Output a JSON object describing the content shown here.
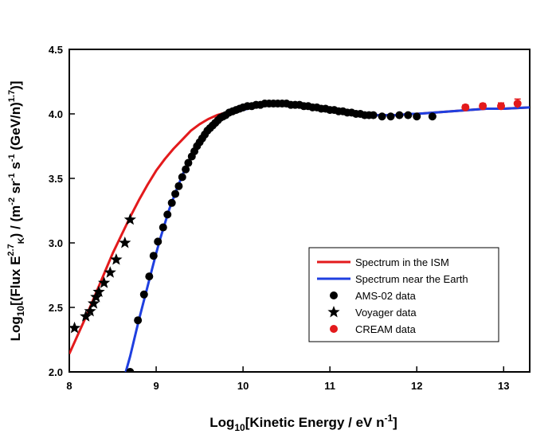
{
  "chart_data": {
    "type": "scatter",
    "xlim": [
      8,
      13.3
    ],
    "ylim": [
      2.0,
      4.5
    ],
    "x_ticks": [
      "8",
      "9",
      "10",
      "11",
      "12",
      "13"
    ],
    "x_tick_values": [
      8,
      9,
      10,
      11,
      12,
      13
    ],
    "y_ticks": [
      "2.0",
      "2.5",
      "3.0",
      "3.5",
      "4.0",
      "4.5"
    ],
    "y_tick_values": [
      2.0,
      2.5,
      3.0,
      3.5,
      4.0,
      4.5
    ],
    "xlabel": {
      "prefix": "Log",
      "sub": "10",
      "main": "[Kinetic Energy / eV n",
      "sup": "-1",
      "suffix": "]"
    },
    "ylabel": {
      "p1": "Log",
      "s1": "10",
      "p2": "[(Flux  E",
      "sup1": "2.7",
      "sub2": "K",
      "p3": ") / (m",
      "sup2": "-2",
      "p4": " sr",
      "sup3": "-1",
      "p5": " s",
      "sup4": "-1",
      "p6": " (GeV/n)",
      "sup5": "1.7",
      "p7": ")]"
    },
    "colors": {
      "ism": "#e31a1c",
      "earth": "#1f3fe0",
      "ams": "#000000",
      "voyager": "#000000",
      "cream": "#e31a1c"
    },
    "series": [
      {
        "name": "Spectrum in the ISM",
        "kind": "line",
        "color": "#e31a1c",
        "points": [
          [
            8.0,
            2.14
          ],
          [
            8.1,
            2.29
          ],
          [
            8.2,
            2.44
          ],
          [
            8.3,
            2.6
          ],
          [
            8.4,
            2.76
          ],
          [
            8.5,
            2.92
          ],
          [
            8.6,
            3.06
          ],
          [
            8.7,
            3.2
          ],
          [
            8.8,
            3.33
          ],
          [
            8.9,
            3.45
          ],
          [
            9.0,
            3.56
          ],
          [
            9.1,
            3.65
          ],
          [
            9.2,
            3.73
          ],
          [
            9.3,
            3.8
          ],
          [
            9.4,
            3.87
          ],
          [
            9.5,
            3.92
          ],
          [
            9.6,
            3.96
          ],
          [
            9.7,
            3.99
          ],
          [
            9.8,
            4.01
          ],
          [
            9.9,
            4.03
          ],
          [
            10.0,
            4.04
          ],
          [
            10.1,
            4.06
          ],
          [
            10.2,
            4.07
          ],
          [
            10.3,
            4.08
          ],
          [
            10.4,
            4.08
          ],
          [
            10.5,
            4.08
          ],
          [
            10.6,
            4.07
          ],
          [
            10.7,
            4.06
          ],
          [
            10.8,
            4.05
          ],
          [
            10.9,
            4.04
          ],
          [
            11.0,
            4.02
          ],
          [
            11.1,
            4.01
          ],
          [
            11.2,
            4.0
          ],
          [
            11.3,
            3.99
          ],
          [
            11.4,
            3.99
          ],
          [
            11.5,
            3.99
          ],
          [
            11.6,
            3.99
          ],
          [
            11.7,
            3.99
          ],
          [
            11.8,
            3.99
          ],
          [
            11.9,
            4.0
          ],
          [
            12.0,
            4.0
          ],
          [
            12.2,
            4.01
          ],
          [
            12.4,
            4.02
          ],
          [
            12.6,
            4.03
          ],
          [
            12.8,
            4.04
          ],
          [
            13.0,
            4.04
          ],
          [
            13.3,
            4.05
          ]
        ]
      },
      {
        "name": "Spectrum near the Earth",
        "kind": "line",
        "color": "#1f3fe0",
        "points": [
          [
            8.65,
            2.0
          ],
          [
            8.7,
            2.12
          ],
          [
            8.75,
            2.26
          ],
          [
            8.8,
            2.4
          ],
          [
            8.85,
            2.53
          ],
          [
            8.9,
            2.66
          ],
          [
            8.95,
            2.79
          ],
          [
            9.0,
            2.92
          ],
          [
            9.05,
            3.04
          ],
          [
            9.1,
            3.15
          ],
          [
            9.15,
            3.26
          ],
          [
            9.2,
            3.35
          ],
          [
            9.25,
            3.44
          ],
          [
            9.3,
            3.52
          ],
          [
            9.35,
            3.6
          ],
          [
            9.4,
            3.66
          ],
          [
            9.45,
            3.72
          ],
          [
            9.5,
            3.77
          ],
          [
            9.55,
            3.82
          ],
          [
            9.6,
            3.86
          ],
          [
            9.65,
            3.9
          ],
          [
            9.7,
            3.93
          ],
          [
            9.75,
            3.96
          ],
          [
            9.8,
            3.98
          ],
          [
            9.9,
            4.01
          ],
          [
            10.0,
            4.03
          ],
          [
            10.1,
            4.05
          ],
          [
            10.2,
            4.06
          ],
          [
            10.3,
            4.07
          ],
          [
            10.4,
            4.08
          ],
          [
            10.5,
            4.08
          ],
          [
            10.6,
            4.07
          ],
          [
            10.7,
            4.06
          ],
          [
            10.8,
            4.05
          ],
          [
            10.9,
            4.04
          ],
          [
            11.0,
            4.02
          ],
          [
            11.1,
            4.01
          ],
          [
            11.2,
            4.0
          ],
          [
            11.3,
            3.99
          ],
          [
            11.4,
            3.99
          ],
          [
            11.5,
            3.99
          ],
          [
            11.6,
            3.99
          ],
          [
            11.7,
            3.99
          ],
          [
            11.8,
            3.99
          ],
          [
            11.9,
            4.0
          ],
          [
            12.0,
            4.0
          ],
          [
            12.2,
            4.01
          ],
          [
            12.4,
            4.02
          ],
          [
            12.6,
            4.03
          ],
          [
            12.8,
            4.04
          ],
          [
            13.0,
            4.04
          ],
          [
            13.3,
            4.05
          ]
        ]
      },
      {
        "name": "AMS-02 data",
        "kind": "circle",
        "color": "#000000",
        "points": [
          [
            8.7,
            2.0
          ],
          [
            8.79,
            2.4
          ],
          [
            8.86,
            2.6
          ],
          [
            8.92,
            2.74
          ],
          [
            8.97,
            2.9
          ],
          [
            9.02,
            3.01
          ],
          [
            9.08,
            3.12
          ],
          [
            9.13,
            3.22
          ],
          [
            9.18,
            3.31
          ],
          [
            9.22,
            3.38
          ],
          [
            9.26,
            3.44
          ],
          [
            9.3,
            3.51
          ],
          [
            9.34,
            3.57
          ],
          [
            9.37,
            3.62
          ],
          [
            9.41,
            3.67
          ],
          [
            9.44,
            3.71
          ],
          [
            9.47,
            3.75
          ],
          [
            9.5,
            3.78
          ],
          [
            9.53,
            3.81
          ],
          [
            9.56,
            3.84
          ],
          [
            9.59,
            3.87
          ],
          [
            9.62,
            3.89
          ],
          [
            9.65,
            3.91
          ],
          [
            9.68,
            3.93
          ],
          [
            9.71,
            3.95
          ],
          [
            9.74,
            3.97
          ],
          [
            9.77,
            3.98
          ],
          [
            9.8,
            3.99
          ],
          [
            9.84,
            4.01
          ],
          [
            9.88,
            4.02
          ],
          [
            9.92,
            4.03
          ],
          [
            9.96,
            4.04
          ],
          [
            10.0,
            4.05
          ],
          [
            10.05,
            4.06
          ],
          [
            10.1,
            4.06
          ],
          [
            10.15,
            4.07
          ],
          [
            10.2,
            4.07
          ],
          [
            10.25,
            4.08
          ],
          [
            10.3,
            4.08
          ],
          [
            10.35,
            4.08
          ],
          [
            10.4,
            4.08
          ],
          [
            10.45,
            4.08
          ],
          [
            10.5,
            4.08
          ],
          [
            10.55,
            4.07
          ],
          [
            10.6,
            4.07
          ],
          [
            10.65,
            4.07
          ],
          [
            10.7,
            4.06
          ],
          [
            10.75,
            4.06
          ],
          [
            10.8,
            4.05
          ],
          [
            10.85,
            4.05
          ],
          [
            10.9,
            4.04
          ],
          [
            10.95,
            4.04
          ],
          [
            11.0,
            4.03
          ],
          [
            11.05,
            4.03
          ],
          [
            11.1,
            4.02
          ],
          [
            11.15,
            4.02
          ],
          [
            11.2,
            4.01
          ],
          [
            11.25,
            4.01
          ],
          [
            11.3,
            4.0
          ],
          [
            11.35,
            4.0
          ],
          [
            11.4,
            3.99
          ],
          [
            11.45,
            3.99
          ],
          [
            11.5,
            3.99
          ],
          [
            11.6,
            3.98
          ],
          [
            11.7,
            3.98
          ],
          [
            11.8,
            3.99
          ],
          [
            11.9,
            3.99
          ],
          [
            12.0,
            3.98
          ],
          [
            12.18,
            3.98
          ]
        ]
      },
      {
        "name": "Voyager data",
        "kind": "star",
        "color": "#000000",
        "points": [
          [
            8.06,
            2.34
          ],
          [
            8.19,
            2.43
          ],
          [
            8.24,
            2.47
          ],
          [
            8.28,
            2.53
          ],
          [
            8.31,
            2.58
          ],
          [
            8.34,
            2.62
          ],
          [
            8.4,
            2.69
          ],
          [
            8.47,
            2.77
          ],
          [
            8.54,
            2.87
          ],
          [
            8.64,
            3.0
          ],
          [
            8.7,
            3.18
          ]
        ]
      },
      {
        "name": "CREAM data",
        "kind": "circle",
        "color": "#e31a1c",
        "points": [
          [
            12.56,
            4.05
          ],
          [
            12.76,
            4.06
          ],
          [
            12.97,
            4.06
          ],
          [
            13.16,
            4.08
          ]
        ],
        "errors": [
          0.02,
          0.02,
          0.025,
          0.035
        ]
      }
    ],
    "legend": {
      "position": "bottom-right",
      "entries": [
        {
          "label": "Spectrum in the ISM",
          "kind": "line",
          "color": "#e31a1c"
        },
        {
          "label": "Spectrum near the Earth",
          "kind": "line",
          "color": "#1f3fe0"
        },
        {
          "label": "AMS-02 data",
          "kind": "circle",
          "color": "#000000"
        },
        {
          "label": "Voyager data",
          "kind": "star",
          "color": "#000000"
        },
        {
          "label": "CREAM data",
          "kind": "circle",
          "color": "#e31a1c"
        }
      ]
    }
  }
}
